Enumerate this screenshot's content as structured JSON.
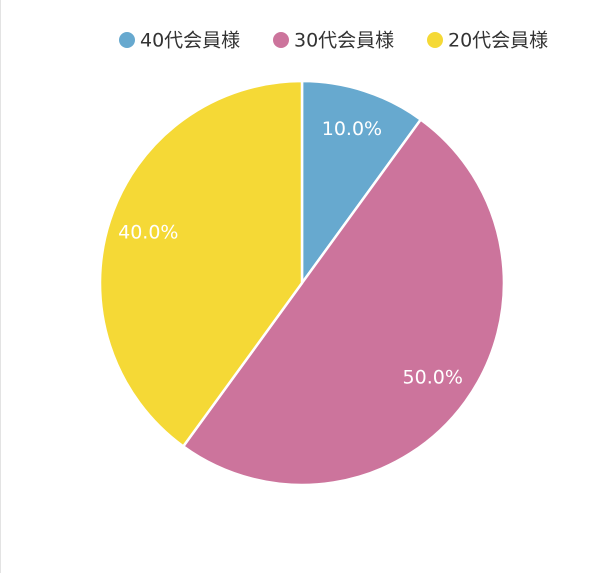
{
  "chart_data": {
    "type": "pie",
    "categories": [
      "40代会員様",
      "30代会員様",
      "20代会員様"
    ],
    "values": [
      10,
      50,
      40
    ],
    "value_labels": [
      "10.0%",
      "50.0%",
      "40.0%"
    ],
    "colors": [
      "#67a9cf",
      "#cc749c",
      "#f5d936"
    ],
    "legend": "top"
  }
}
